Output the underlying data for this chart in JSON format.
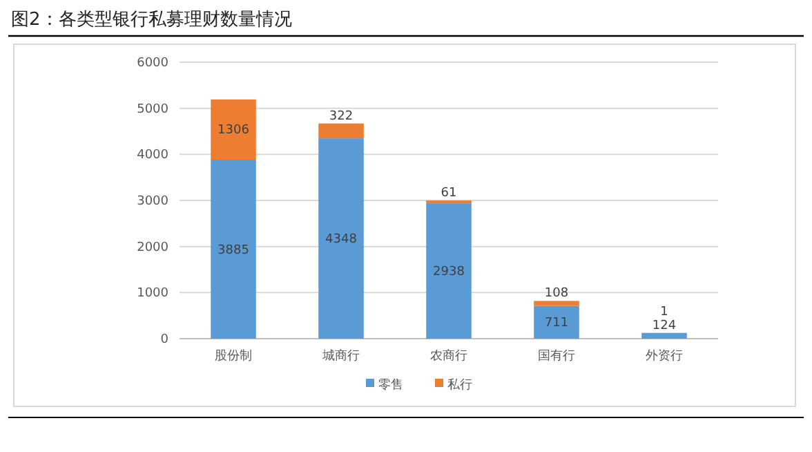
{
  "chart_data": {
    "type": "bar",
    "title": "图2：各类型银行私募理财数量情况",
    "stacked": true,
    "categories": [
      "股份制",
      "城商行",
      "农商行",
      "国有行",
      "外资行"
    ],
    "series": [
      {
        "name": "零售",
        "color": "#5b9bd5",
        "values": [
          3885,
          4348,
          2938,
          711,
          124
        ]
      },
      {
        "name": "私行",
        "color": "#ed7d31",
        "values": [
          1306,
          322,
          61,
          108,
          1
        ]
      }
    ],
    "ylim": [
      0,
      6000
    ],
    "yticks": [
      0,
      1000,
      2000,
      3000,
      4000,
      5000,
      6000
    ],
    "grid": "y",
    "legend": "bottom",
    "data_labels": true
  }
}
